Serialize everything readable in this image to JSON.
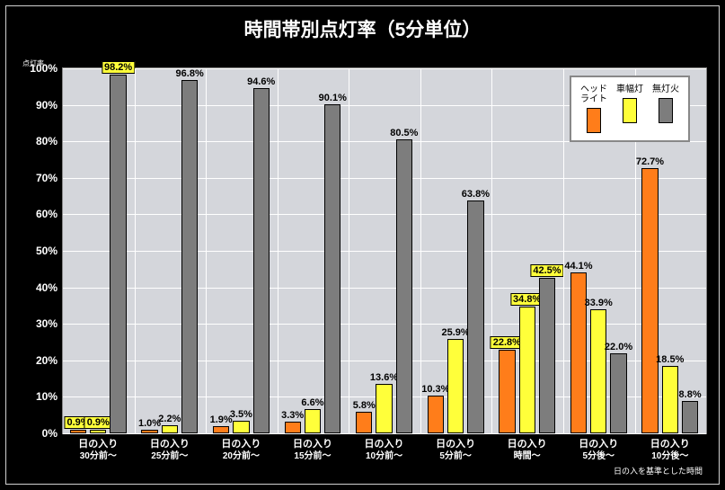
{
  "chart": {
    "type": "bar",
    "title": "時間帯別点灯率（5分単位）",
    "y_axis_label": "点灯率",
    "foot_note": "日の入を基準とした時間",
    "ylim": [
      0,
      100
    ],
    "yticks": [
      0,
      10,
      20,
      30,
      40,
      50,
      60,
      70,
      80,
      90,
      100
    ],
    "ytick_suffix": "%",
    "background_color": "#000000",
    "plot_background": "#d4d6db",
    "grid_color": "#ffffff",
    "title_color": "#ffffff",
    "title_fontsize": 21,
    "axis_tick_fontsize": 12,
    "xlabel_l1_fontsize": 11,
    "xlabel_l2_fontsize": 10,
    "value_label_fontsize": 11,
    "highlight_box_color": "#ffff3a",
    "legend": {
      "position": "top-right",
      "border_color": "#888888",
      "background": "#ffffff",
      "entries": [
        {
          "label": "ヘッド\nライト",
          "color": "#ff7d1a"
        },
        {
          "label": "車幅灯",
          "color": "#ffff3a"
        },
        {
          "label": "無灯火",
          "color": "#7d7d7d"
        }
      ]
    },
    "series_colors": {
      "headlight": "#ff7d1a",
      "sidelight": "#ffff3a",
      "nolight": "#7d7d7d"
    },
    "categories": [
      {
        "l1": "日の入り",
        "l2": "30分前～"
      },
      {
        "l1": "日の入り",
        "l2": "25分前～"
      },
      {
        "l1": "日の入り",
        "l2": "20分前～"
      },
      {
        "l1": "日の入り",
        "l2": "15分前～"
      },
      {
        "l1": "日の入り",
        "l2": "10分前～"
      },
      {
        "l1": "日の入り",
        "l2": "5分前～"
      },
      {
        "l1": "日の入り",
        "l2": "時間～"
      },
      {
        "l1": "日の入り",
        "l2": "5分後～"
      },
      {
        "l1": "日の入り",
        "l2": "10分後～"
      }
    ],
    "data": {
      "headlight": [
        0.9,
        1.0,
        1.9,
        3.3,
        5.8,
        10.3,
        22.8,
        44.1,
        72.7
      ],
      "sidelight": [
        0.9,
        2.2,
        3.5,
        6.6,
        13.6,
        25.9,
        34.8,
        33.9,
        18.5
      ],
      "nolight": [
        98.2,
        96.8,
        94.6,
        90.1,
        80.5,
        63.8,
        42.5,
        22.0,
        8.8
      ]
    },
    "highlighted": [
      {
        "cat": 0,
        "series": "headlight"
      },
      {
        "cat": 0,
        "series": "sidelight"
      },
      {
        "cat": 0,
        "series": "nolight"
      },
      {
        "cat": 6,
        "series": "headlight"
      },
      {
        "cat": 6,
        "series": "sidelight"
      },
      {
        "cat": 6,
        "series": "nolight"
      }
    ]
  }
}
